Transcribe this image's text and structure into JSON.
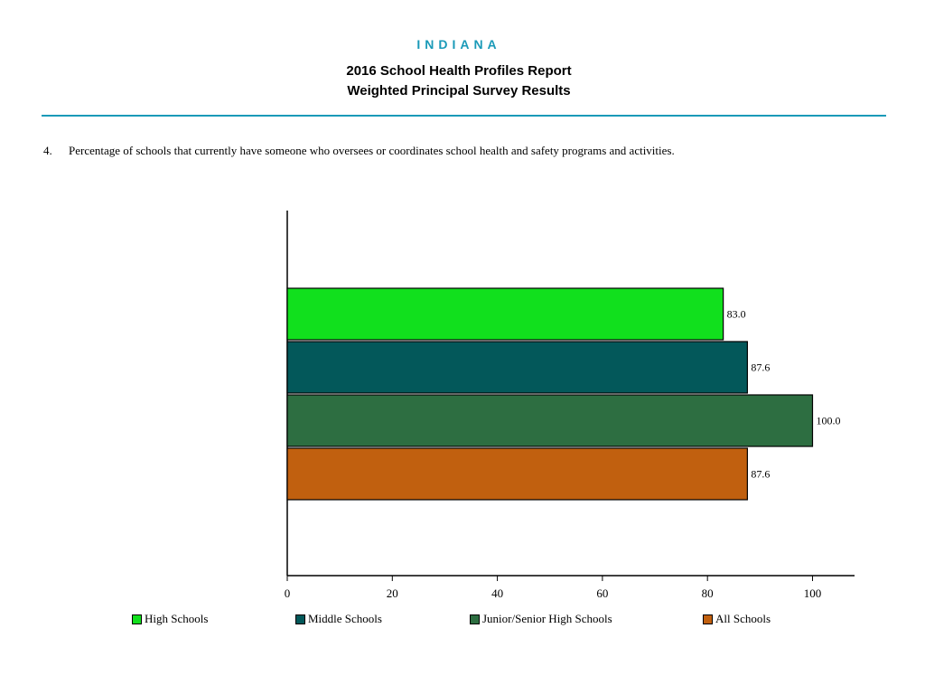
{
  "header": {
    "state": "INDIANA",
    "title_line1": "2016 School Health Profiles Report",
    "title_line2": "Weighted Principal Survey Results"
  },
  "question": {
    "number": "4.",
    "text": "Percentage of schools that currently have someone who oversees or coordinates school health and safety programs and activities."
  },
  "chart_data": {
    "type": "bar",
    "orientation": "horizontal",
    "categories": [
      "High Schools",
      "Middle Schools",
      "Junior/Senior High Schools",
      "All Schools"
    ],
    "values": [
      83.0,
      87.6,
      100.0,
      87.6
    ],
    "value_labels": [
      "83.0",
      "87.6",
      "100.0",
      "87.6"
    ],
    "colors": [
      "#11e01d",
      "#03585a",
      "#2d6e41",
      "#c1600f"
    ],
    "xlim": [
      0,
      108
    ],
    "xticks": [
      0,
      20,
      40,
      60,
      80,
      100
    ],
    "grid": false,
    "legend_position": "bottom"
  }
}
